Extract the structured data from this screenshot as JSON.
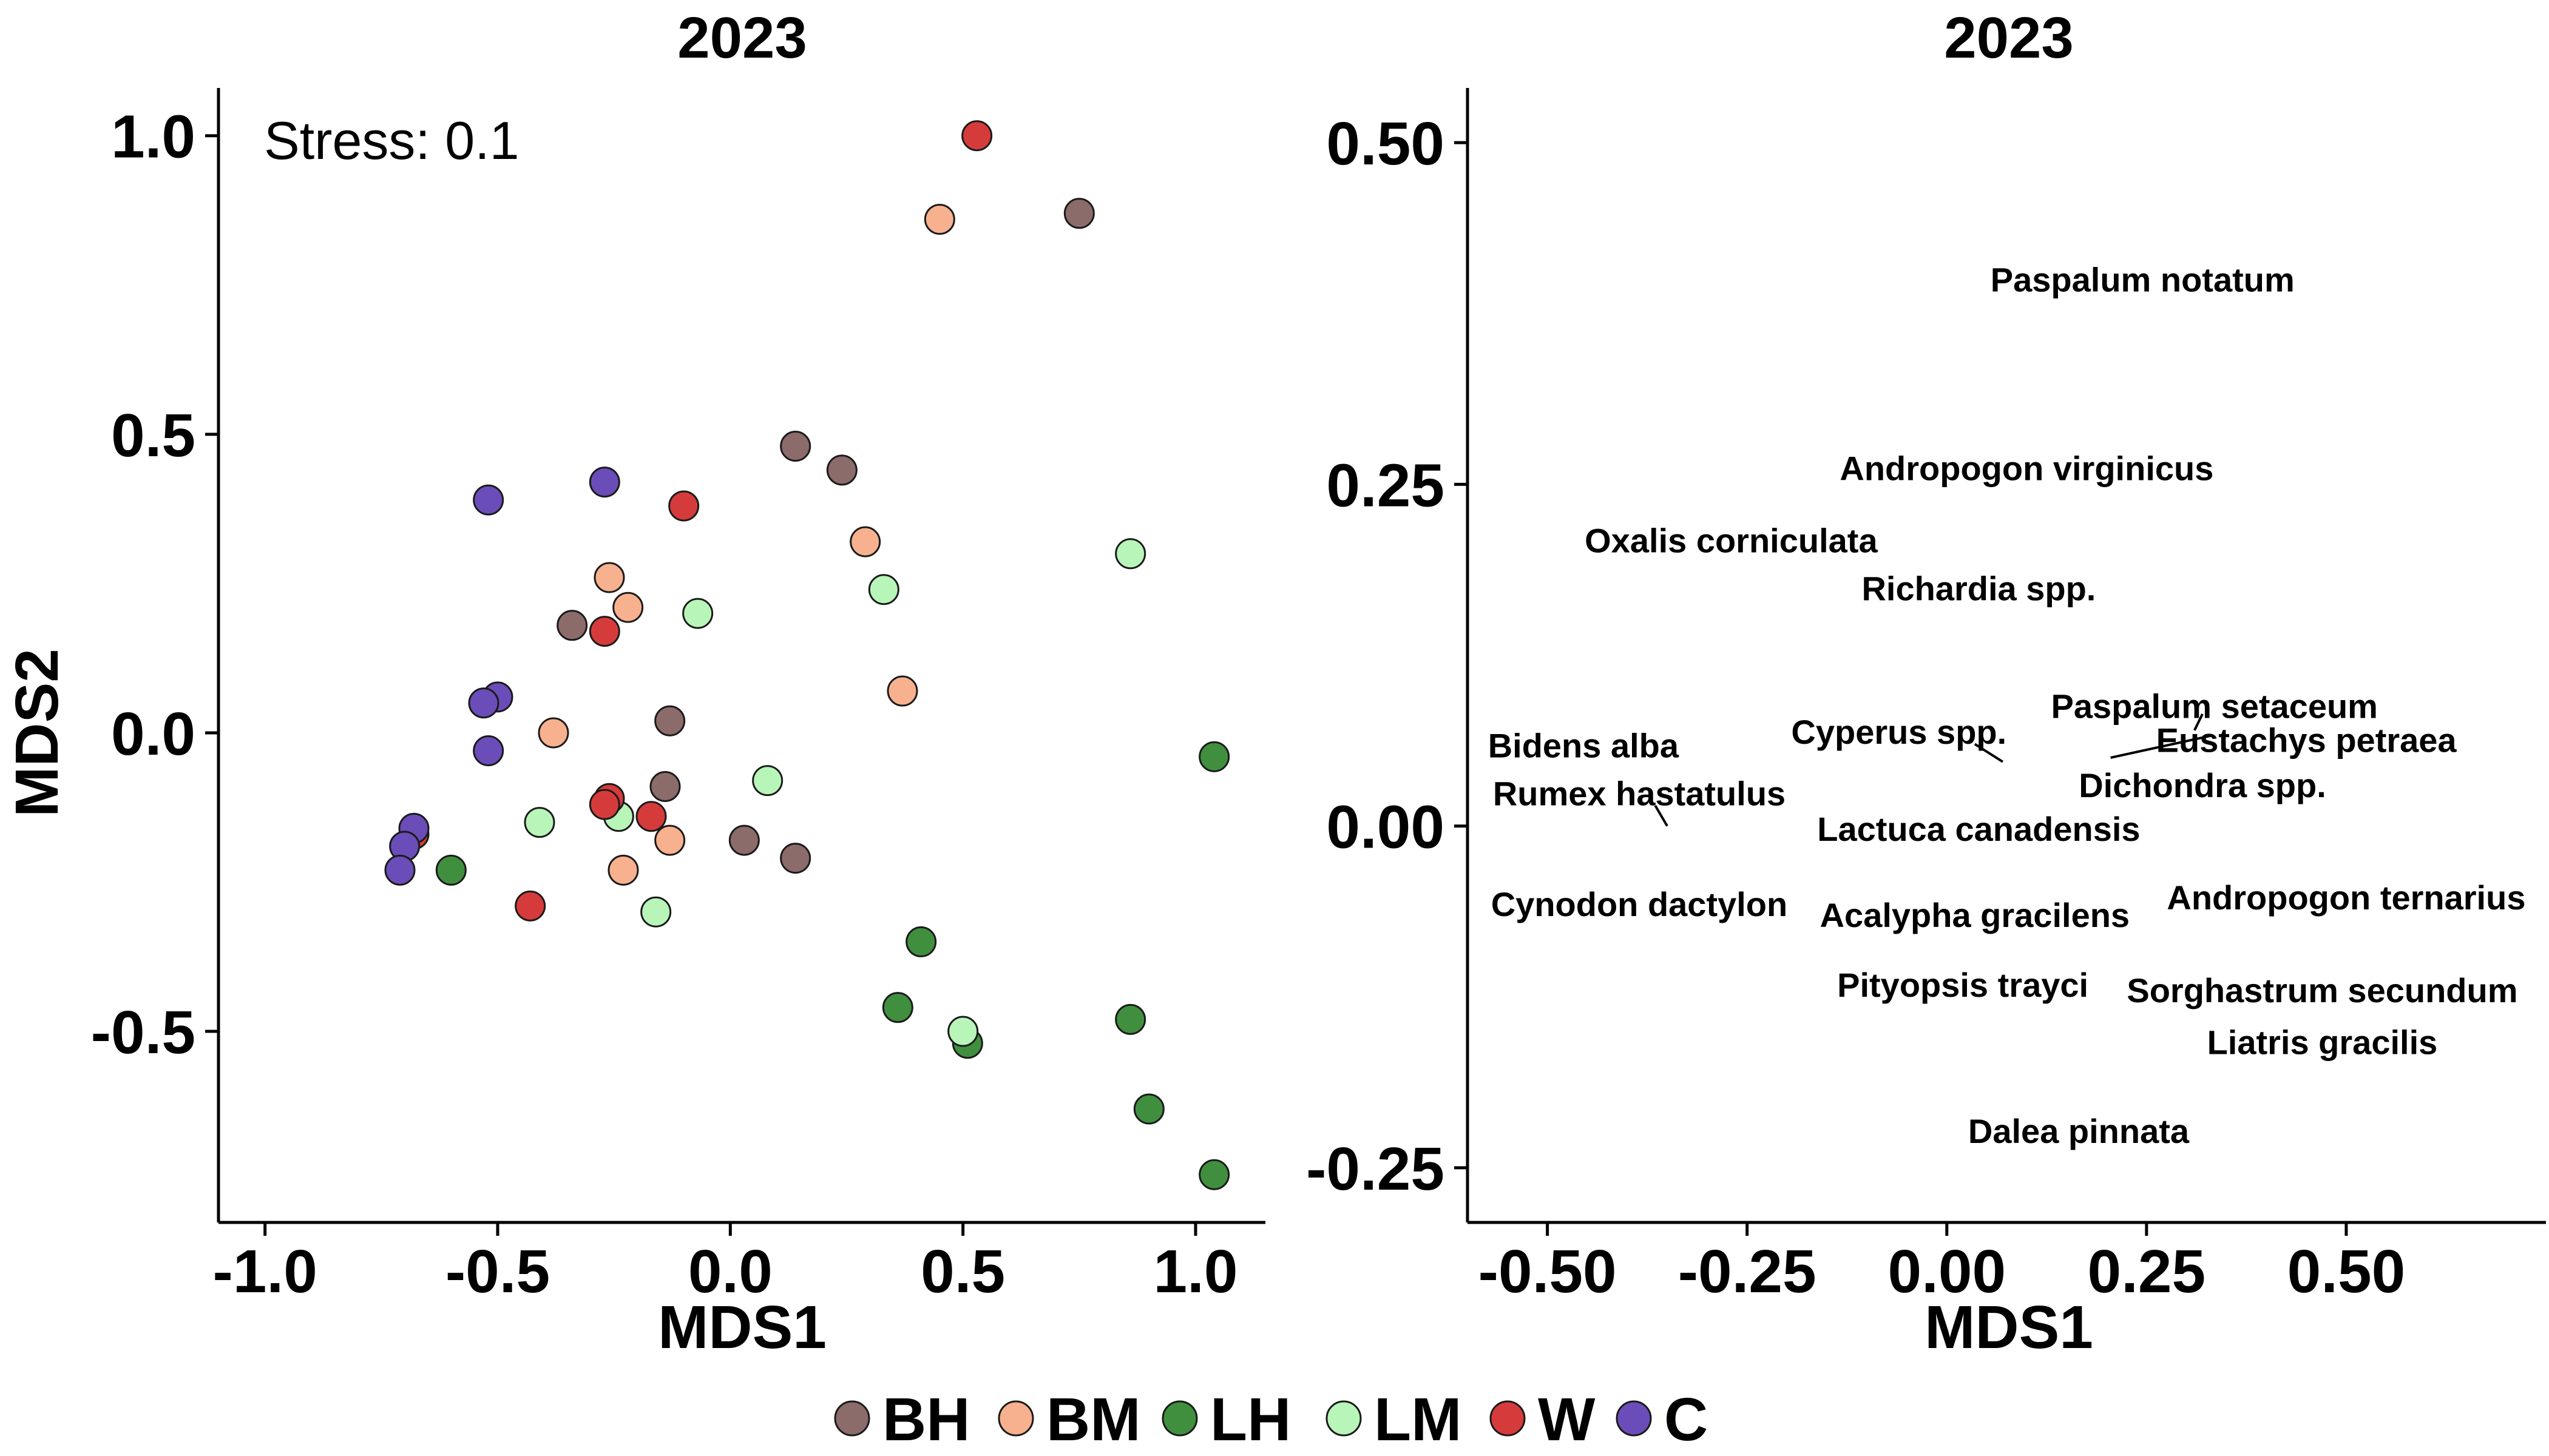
{
  "chart_data": [
    {
      "type": "scatter",
      "title": "2023",
      "xlabel": "MDS1",
      "ylabel": "MDS2",
      "xlim": [
        -1.1,
        1.15
      ],
      "ylim": [
        -0.82,
        1.08
      ],
      "xticks": [
        -1.0,
        -0.5,
        0.0,
        0.5,
        1.0
      ],
      "xtick_labels": [
        "-1.0",
        "-0.5",
        "0.0",
        "0.5",
        "1.0"
      ],
      "yticks": [
        -0.5,
        0.0,
        0.5,
        1.0
      ],
      "ytick_labels": [
        "-0.5",
        "0.0",
        "0.5",
        "1.0"
      ],
      "annotation": "Stress: 0.1",
      "grid": false,
      "legend_position": "bottom",
      "series": [
        {
          "name": "BH",
          "color": "#8C6B6B",
          "points": [
            [
              0.75,
              0.87
            ],
            [
              0.14,
              0.48
            ],
            [
              0.24,
              0.44
            ],
            [
              -0.34,
              0.18
            ],
            [
              -0.13,
              0.02
            ],
            [
              -0.14,
              -0.09
            ],
            [
              0.03,
              -0.18
            ],
            [
              0.14,
              -0.21
            ]
          ]
        },
        {
          "name": "BM",
          "color": "#F7B18E",
          "points": [
            [
              0.45,
              0.86
            ],
            [
              0.29,
              0.32
            ],
            [
              -0.26,
              0.26
            ],
            [
              -0.22,
              0.21
            ],
            [
              0.37,
              0.07
            ],
            [
              -0.38,
              0.0
            ],
            [
              -0.13,
              -0.18
            ],
            [
              -0.23,
              -0.23
            ]
          ]
        },
        {
          "name": "LH",
          "color": "#3F8F3F",
          "points": [
            [
              1.04,
              -0.04
            ],
            [
              0.41,
              -0.35
            ],
            [
              0.36,
              -0.46
            ],
            [
              0.51,
              -0.52
            ],
            [
              0.86,
              -0.48
            ],
            [
              0.9,
              -0.63
            ],
            [
              1.04,
              -0.74
            ],
            [
              -0.6,
              -0.23
            ]
          ]
        },
        {
          "name": "LM",
          "color": "#B8F5B8",
          "points": [
            [
              0.86,
              0.3
            ],
            [
              0.33,
              0.24
            ],
            [
              -0.07,
              0.2
            ],
            [
              0.08,
              -0.08
            ],
            [
              -0.41,
              -0.15
            ],
            [
              -0.24,
              -0.14
            ],
            [
              -0.16,
              -0.3
            ],
            [
              0.5,
              -0.5
            ]
          ]
        },
        {
          "name": "W",
          "color": "#D63B3B",
          "points": [
            [
              0.53,
              1.0
            ],
            [
              -0.1,
              0.38
            ],
            [
              -0.27,
              0.17
            ],
            [
              -0.26,
              -0.11
            ],
            [
              -0.27,
              -0.12
            ],
            [
              -0.17,
              -0.14
            ],
            [
              -0.43,
              -0.29
            ],
            [
              -0.68,
              -0.17
            ]
          ]
        },
        {
          "name": "C",
          "color": "#6A4DB8",
          "points": [
            [
              -0.52,
              0.39
            ],
            [
              -0.27,
              0.42
            ],
            [
              -0.5,
              0.06
            ],
            [
              -0.53,
              0.05
            ],
            [
              -0.52,
              -0.03
            ],
            [
              -0.68,
              -0.16
            ],
            [
              -0.7,
              -0.19
            ],
            [
              -0.71,
              -0.23
            ]
          ]
        }
      ]
    },
    {
      "type": "scatter",
      "title": "2023",
      "xlabel": "MDS1",
      "ylabel": "",
      "xlim": [
        -0.6,
        0.75
      ],
      "ylim": [
        -0.29,
        0.54
      ],
      "xticks": [
        -0.5,
        -0.25,
        0.0,
        0.25,
        0.5
      ],
      "xtick_labels": [
        "-0.50",
        "-0.25",
        "0.00",
        "0.25",
        "0.50"
      ],
      "yticks": [
        -0.25,
        0.0,
        0.25,
        0.5
      ],
      "ytick_labels": [
        "-0.25",
        "0.00",
        "0.25",
        "0.50"
      ],
      "grid": false,
      "labels": [
        {
          "text": "Paspalum notatum",
          "x": 0.245,
          "y": 0.4,
          "anchor": "middle"
        },
        {
          "text": "Andropogon virginicus",
          "x": 0.1,
          "y": 0.262,
          "anchor": "middle"
        },
        {
          "text": "Oxalis corniculata",
          "x": -0.27,
          "y": 0.209,
          "anchor": "middle"
        },
        {
          "text": "Richardia spp.",
          "x": 0.04,
          "y": 0.174,
          "anchor": "middle"
        },
        {
          "text": "Paspalum setaceum",
          "x": 0.335,
          "y": 0.088,
          "anchor": "middle"
        },
        {
          "text": "Cyperus spp.",
          "x": -0.06,
          "y": 0.069,
          "anchor": "middle"
        },
        {
          "text": "Eustachys petraea",
          "x": 0.45,
          "y": 0.063,
          "anchor": "middle"
        },
        {
          "text": "Bidens alba",
          "x": -0.455,
          "y": 0.059,
          "anchor": "middle"
        },
        {
          "text": "Dichondra spp.",
          "x": 0.32,
          "y": 0.03,
          "anchor": "middle"
        },
        {
          "text": "Rumex hastatulus",
          "x": -0.385,
          "y": 0.024,
          "anchor": "middle"
        },
        {
          "text": "Lactuca canadensis",
          "x": 0.04,
          "y": -0.002,
          "anchor": "middle"
        },
        {
          "text": "Andropogon ternarius",
          "x": 0.5,
          "y": -0.052,
          "anchor": "middle"
        },
        {
          "text": "Cynodon dactylon",
          "x": -0.385,
          "y": -0.057,
          "anchor": "middle"
        },
        {
          "text": "Acalypha gracilens",
          "x": 0.035,
          "y": -0.065,
          "anchor": "middle"
        },
        {
          "text": "Pityopsis trayci",
          "x": 0.02,
          "y": -0.116,
          "anchor": "middle"
        },
        {
          "text": "Sorghastrum secundum",
          "x": 0.47,
          "y": -0.12,
          "anchor": "middle"
        },
        {
          "text": "Liatris gracilis",
          "x": 0.47,
          "y": -0.158,
          "anchor": "middle"
        },
        {
          "text": "Dalea pinnata",
          "x": 0.165,
          "y": -0.223,
          "anchor": "middle"
        }
      ],
      "leaders": [
        {
          "x1": 0.32,
          "y1": 0.082,
          "x2": 0.31,
          "y2": 0.07
        },
        {
          "x1": 0.33,
          "y1": 0.066,
          "x2": 0.205,
          "y2": 0.05
        },
        {
          "x1": 0.07,
          "y1": 0.047,
          "x2": 0.035,
          "y2": 0.06
        },
        {
          "x1": -0.365,
          "y1": 0.015,
          "x2": -0.35,
          "y2": 0.0
        }
      ]
    }
  ],
  "legend": [
    {
      "name": "BH",
      "color": "#8C6B6B"
    },
    {
      "name": "BM",
      "color": "#F7B18E"
    },
    {
      "name": "LH",
      "color": "#3F8F3F"
    },
    {
      "name": "LM",
      "color": "#B8F5B8"
    },
    {
      "name": "W",
      "color": "#D63B3B"
    },
    {
      "name": "C",
      "color": "#6A4DB8"
    }
  ]
}
